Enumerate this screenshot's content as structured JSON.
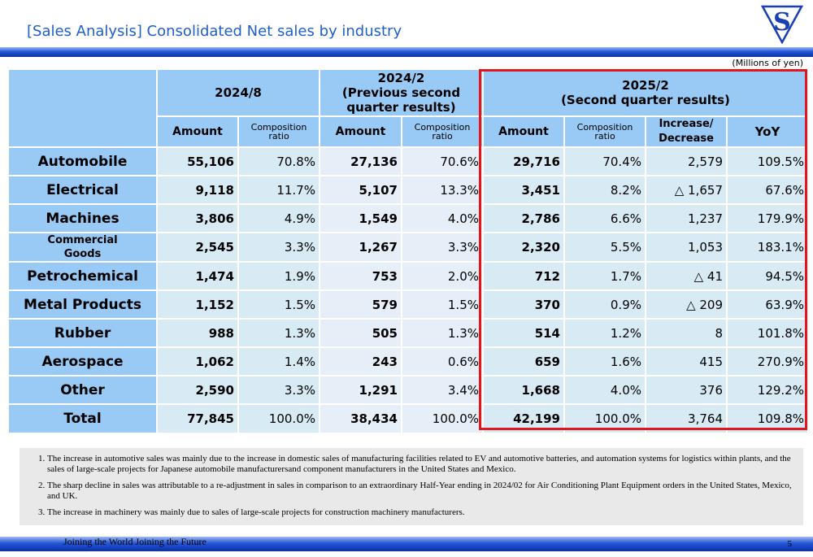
{
  "title": "[Sales Analysis] Consolidated Net sales by industry",
  "logo": {
    "letter": "S"
  },
  "units": "(Millions of yen)",
  "headers": {
    "p1": "2024/8",
    "p2_line1": "2024/2",
    "p2_line2": "(Previous second",
    "p2_line3": "quarter results)",
    "p3_line1": "2025/2",
    "p3_line2": "(Second quarter results)",
    "amount": "Amount",
    "comp_line1": "Composition",
    "comp_line2": "ratio",
    "inc_line1": "Increase/",
    "inc_line2": "Decrease",
    "yoy": "YoY"
  },
  "rows": [
    {
      "category": "Automobile",
      "a1": "55,106",
      "r1": "70.8%",
      "a2": "27,136",
      "r2": "70.6%",
      "a3": "29,716",
      "r3": "70.4%",
      "inc": "2,579",
      "yoy": "109.5%"
    },
    {
      "category": "Electrical",
      "a1": "9,118",
      "r1": "11.7%",
      "a2": "5,107",
      "r2": "13.3%",
      "a3": "3,451",
      "r3": "8.2%",
      "inc": "△ 1,657",
      "yoy": "67.6%"
    },
    {
      "category": "Machines",
      "a1": "3,806",
      "r1": "4.9%",
      "a2": "1,549",
      "r2": "4.0%",
      "a3": "2,786",
      "r3": "6.6%",
      "inc": "1,237",
      "yoy": "179.9%"
    },
    {
      "category_line1": "Commercial",
      "category_line2": "Goods",
      "a1": "2,545",
      "r1": "3.3%",
      "a2": "1,267",
      "r2": "3.3%",
      "a3": "2,320",
      "r3": "5.5%",
      "inc": "1,053",
      "yoy": "183.1%"
    },
    {
      "category": "Petrochemical",
      "a1": "1,474",
      "r1": "1.9%",
      "a2": "753",
      "r2": "2.0%",
      "a3": "712",
      "r3": "1.7%",
      "inc": "△ 41",
      "yoy": "94.5%"
    },
    {
      "category": "Metal Products",
      "a1": "1,152",
      "r1": "1.5%",
      "a2": "579",
      "r2": "1.5%",
      "a3": "370",
      "r3": "0.9%",
      "inc": "△ 209",
      "yoy": "63.9%"
    },
    {
      "category": "Rubber",
      "a1": "988",
      "r1": "1.3%",
      "a2": "505",
      "r2": "1.3%",
      "a3": "514",
      "r3": "1.2%",
      "inc": "8",
      "yoy": "101.8%"
    },
    {
      "category": "Aerospace",
      "a1": "1,062",
      "r1": "1.4%",
      "a2": "243",
      "r2": "0.6%",
      "a3": "659",
      "r3": "1.6%",
      "inc": "415",
      "yoy": "270.9%"
    },
    {
      "category": "Other",
      "a1": "2,590",
      "r1": "3.3%",
      "a2": "1,291",
      "r2": "3.4%",
      "a3": "1,668",
      "r3": "4.0%",
      "inc": "376",
      "yoy": "129.2%"
    },
    {
      "category": "Total",
      "a1": "77,845",
      "r1": "100.0%",
      "a2": "38,434",
      "r2": "100.0%",
      "a3": "42,199",
      "r3": "100.0%",
      "inc": "3,764",
      "yoy": "109.8%"
    }
  ],
  "notes": [
    "The increase in automotive sales was mainly due to the increase in domestic sales of manufacturing facilities related to EV and automotive batteries, and automation systems for logistics within plants, and the sales of large-scale projects for Japanese automobile manufacturersand component manufacturers in the United States and Mexico.",
    "The sharp decline in sales was attributable to a re-adjustment in sales in comparison to an extraordinary Half-Year ending in 2024/02 for Air Conditioning Plant Equipment orders in the United States, Mexico, and UK.",
    "The increase in machinery was mainly due to sales of large-scale projects for construction machinery manufacturers."
  ],
  "footer": "Joining the World Joining the Future",
  "page_number": "5",
  "colors": {
    "header": "#99c9f5",
    "cell_light": "#d8eaf3",
    "cell_alt": "#e6eef8",
    "highlight": "#e4161d",
    "title": "#1f5fc7"
  }
}
